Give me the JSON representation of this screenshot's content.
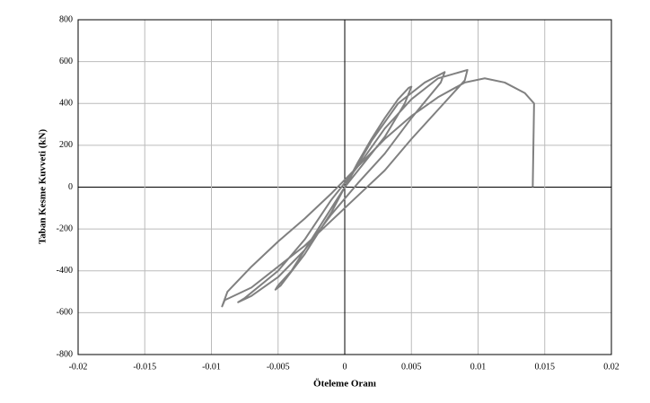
{
  "chart_data": {
    "type": "line",
    "x_label": "Öteleme Oranı",
    "y_label": "Taban Kesme Kuvveti (kN)",
    "xlim": [
      -0.02,
      0.02
    ],
    "xticks": [
      -0.02,
      -0.015,
      -0.01,
      -0.005,
      0,
      0.005,
      0.01,
      0.015,
      0.02
    ],
    "ylim": [
      -800,
      800
    ],
    "yticks": [
      -800,
      -600,
      -400,
      -200,
      0,
      200,
      400,
      600,
      800
    ],
    "grid": true,
    "x": [
      0,
      0.001,
      0.002,
      0.003,
      0.004,
      0.0048,
      0.005,
      0.0045,
      0.003,
      0.001,
      0,
      -0.001,
      -0.002,
      -0.003,
      -0.004,
      -0.005,
      -0.0052,
      -0.0048,
      -0.003,
      -0.001,
      0,
      0.002,
      0.004,
      0.006,
      0.0075,
      0.0072,
      0.005,
      0.003,
      0.001,
      -0.001,
      -0.003,
      -0.005,
      -0.007,
      -0.008,
      -0.0075,
      -0.005,
      -0.003,
      -0.001,
      0.001,
      0.003,
      0.005,
      0.007,
      0.0092,
      0.009,
      0.007,
      0.005,
      0.003,
      0.001,
      -0.001,
      -0.003,
      -0.005,
      -0.007,
      -0.009,
      -0.0092,
      -0.0088,
      -0.007,
      -0.005,
      -0.003,
      -0.001,
      0.001,
      0.003,
      0.005,
      0.007,
      0.009,
      0.0105,
      0.012,
      0.0135,
      0.0142,
      0.0141
    ],
    "series": [
      {
        "color": "#808080",
        "values": [
          0,
          120,
          230,
          330,
          420,
          475,
          480,
          400,
          240,
          80,
          0,
          -100,
          -200,
          -300,
          -400,
          -470,
          -490,
          -470,
          -320,
          -120,
          0,
          220,
          400,
          500,
          550,
          500,
          330,
          160,
          20,
          -130,
          -300,
          -430,
          -520,
          -550,
          -530,
          -400,
          -250,
          -60,
          100,
          280,
          420,
          520,
          560,
          510,
          370,
          230,
          80,
          -40,
          -160,
          -280,
          -380,
          -480,
          -540,
          -570,
          -500,
          -380,
          -260,
          -150,
          -30,
          100,
          230,
          340,
          430,
          500,
          520,
          500,
          450,
          400,
          0
        ]
      }
    ]
  }
}
